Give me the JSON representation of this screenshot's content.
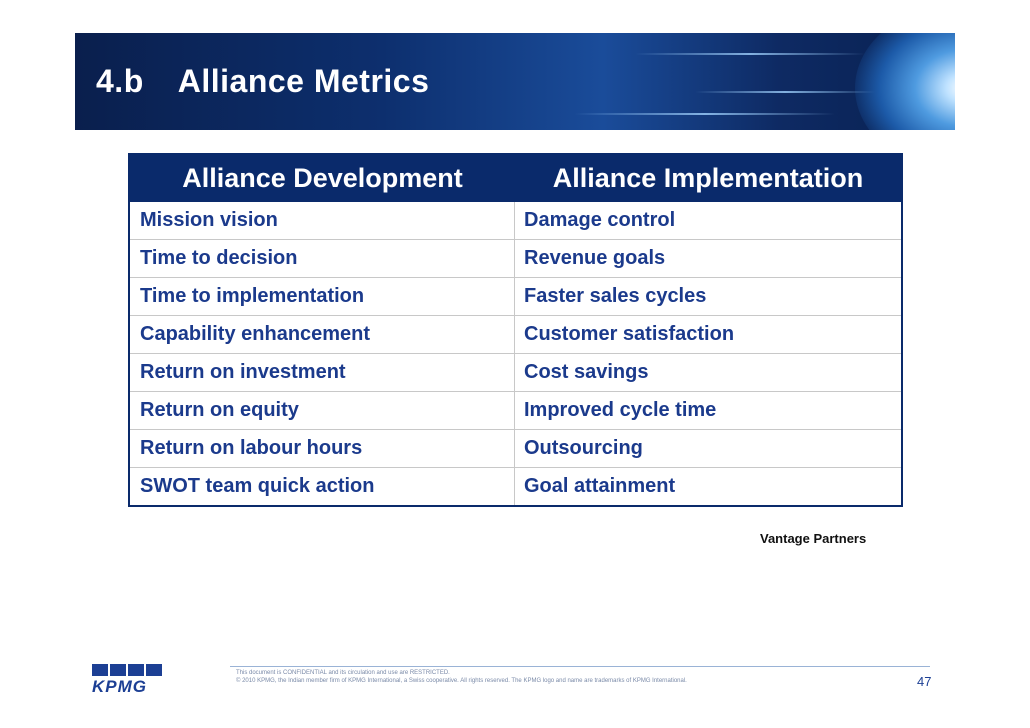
{
  "slide": {
    "section_number": "4.b",
    "title": "Alliance Metrics"
  },
  "table": {
    "headers": [
      "Alliance Development",
      "Alliance Implementation"
    ],
    "rows": [
      [
        "Mission vision",
        "Damage control"
      ],
      [
        "Time to decision",
        "Revenue goals"
      ],
      [
        "Time to implementation",
        "Faster sales cycles"
      ],
      [
        "Capability enhancement",
        "Customer satisfaction"
      ],
      [
        "Return on investment",
        "Cost savings"
      ],
      [
        "Return on equity",
        "Improved cycle time"
      ],
      [
        "Return on labour hours",
        "Outsourcing"
      ],
      [
        "SWOT team quick action",
        "Goal attainment"
      ]
    ]
  },
  "source": "Vantage Partners",
  "footer": {
    "logo_text": "KPMG",
    "confidential_line": "This document is CONFIDENTIAL and its circulation and use are RESTRICTED.",
    "copyright_line": "© 2010 KPMG, the Indian member firm of KPMG International, a Swiss cooperative. All rights reserved. The KPMG logo and name are trademarks of KPMG International.",
    "page_number": "47"
  },
  "colors": {
    "header_bg": "#0a2a6b",
    "cell_text": "#1b3a8c",
    "brand_blue": "#1c3f94"
  }
}
